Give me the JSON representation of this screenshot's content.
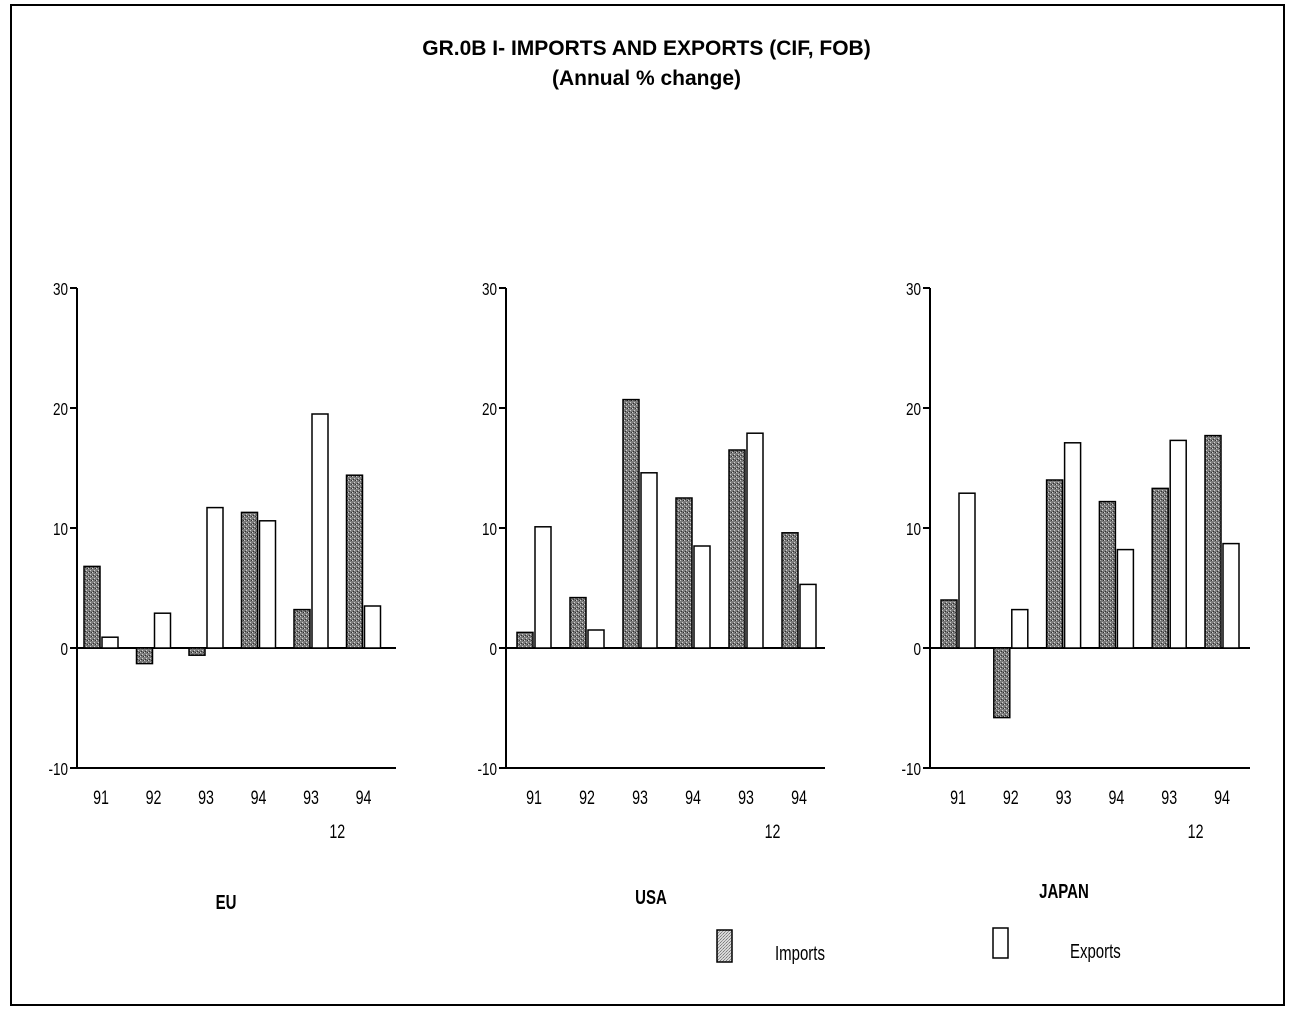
{
  "chart_data": {
    "type": "bar",
    "title": "GR.0B I- IMPORTS AND EXPORTS (CIF, FOB)",
    "subtitle": "(Annual % change)",
    "ylim": [
      -10,
      30
    ],
    "yticks": [
      -10,
      0,
      10,
      20,
      30
    ],
    "categories": [
      "91",
      "92",
      "93",
      "94",
      "93",
      "94"
    ],
    "category_sublabel": "12",
    "legend": [
      {
        "name": "Imports",
        "style": "hatched"
      },
      {
        "name": "Exports",
        "style": "open"
      }
    ],
    "panels": [
      {
        "label": "EU",
        "series": [
          {
            "name": "Imports",
            "values": [
              6.8,
              -1.3,
              -0.6,
              11.3,
              3.2,
              14.4
            ]
          },
          {
            "name": "Exports",
            "values": [
              0.9,
              2.9,
              11.7,
              10.6,
              19.5,
              3.5
            ]
          }
        ]
      },
      {
        "label": "USA",
        "series": [
          {
            "name": "Imports",
            "values": [
              1.3,
              4.2,
              20.7,
              12.5,
              16.5,
              9.6
            ]
          },
          {
            "name": "Exports",
            "values": [
              10.1,
              1.5,
              14.6,
              8.5,
              17.9,
              5.3
            ]
          }
        ]
      },
      {
        "label": "JAPAN",
        "series": [
          {
            "name": "Imports",
            "values": [
              4.0,
              -5.8,
              14.0,
              12.2,
              13.3,
              17.7
            ]
          },
          {
            "name": "Exports",
            "values": [
              12.9,
              3.2,
              17.1,
              8.2,
              17.3,
              8.7
            ]
          }
        ]
      }
    ]
  },
  "colors": {
    "imports_fill": "#707070",
    "imports_light": "#c8c8c8",
    "exports_fill": "#ffffff",
    "axis": "#000000"
  }
}
